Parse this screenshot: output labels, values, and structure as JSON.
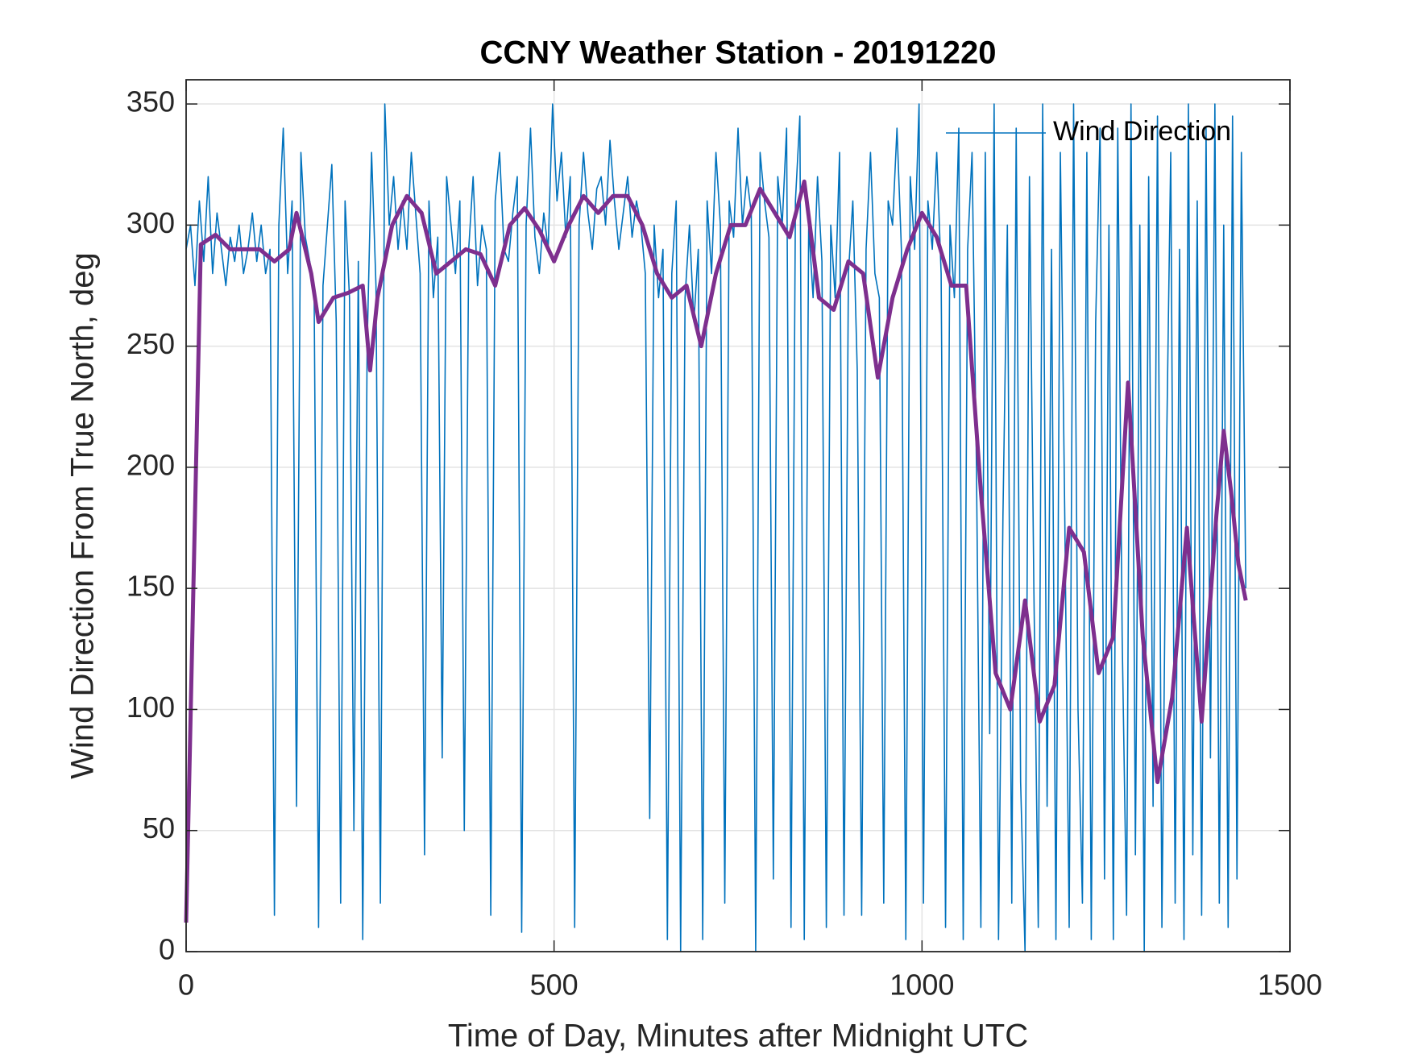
{
  "chart_data": {
    "type": "line",
    "title": "CCNY Weather Station - 20191220",
    "xlabel": "Time of Day, Minutes after Midnight UTC",
    "ylabel": "Wind Direction From True North, deg",
    "xlim": [
      0,
      1500
    ],
    "ylim": [
      0,
      360
    ],
    "xticks": [
      0,
      500,
      1000,
      1500
    ],
    "yticks": [
      0,
      50,
      100,
      150,
      200,
      250,
      300,
      350
    ],
    "grid": true,
    "legend": "northeast",
    "series": [
      {
        "name": "Wind Direction",
        "color": "#0072bd",
        "x": [
          0,
          6,
          12,
          18,
          24,
          30,
          36,
          42,
          48,
          54,
          60,
          66,
          72,
          78,
          84,
          90,
          96,
          102,
          108,
          114,
          120,
          126,
          132,
          138,
          144,
          150,
          156,
          162,
          168,
          174,
          180,
          186,
          192,
          198,
          204,
          210,
          216,
          222,
          228,
          234,
          240,
          246,
          252,
          258,
          264,
          270,
          276,
          282,
          288,
          294,
          300,
          306,
          312,
          318,
          324,
          330,
          336,
          342,
          348,
          354,
          360,
          366,
          372,
          378,
          384,
          390,
          396,
          402,
          408,
          414,
          420,
          426,
          432,
          438,
          444,
          450,
          456,
          462,
          468,
          474,
          480,
          486,
          492,
          498,
          504,
          510,
          516,
          522,
          528,
          534,
          540,
          546,
          552,
          558,
          564,
          570,
          576,
          582,
          588,
          594,
          600,
          606,
          612,
          618,
          624,
          630,
          636,
          642,
          648,
          654,
          660,
          666,
          672,
          678,
          684,
          690,
          696,
          702,
          708,
          714,
          720,
          726,
          732,
          738,
          744,
          750,
          756,
          762,
          768,
          774,
          780,
          786,
          792,
          798,
          804,
          810,
          816,
          822,
          828,
          834,
          840,
          846,
          852,
          858,
          864,
          870,
          876,
          882,
          888,
          894,
          900,
          906,
          912,
          918,
          924,
          930,
          936,
          942,
          948,
          954,
          960,
          966,
          972,
          978,
          984,
          990,
          996,
          1002,
          1008,
          1014,
          1020,
          1026,
          1032,
          1038,
          1044,
          1050,
          1056,
          1062,
          1068,
          1074,
          1080,
          1086,
          1092,
          1098,
          1104,
          1110,
          1116,
          1122,
          1128,
          1134,
          1140,
          1146,
          1152,
          1158,
          1164,
          1170,
          1176,
          1182,
          1188,
          1194,
          1200,
          1206,
          1212,
          1218,
          1224,
          1230,
          1236,
          1242,
          1248,
          1254,
          1260,
          1266,
          1272,
          1278,
          1284,
          1290,
          1296,
          1302,
          1308,
          1314,
          1320,
          1326,
          1332,
          1338,
          1344,
          1350,
          1356,
          1362,
          1368,
          1374,
          1380,
          1386,
          1392,
          1398,
          1404,
          1410,
          1416,
          1422,
          1428,
          1434,
          1440
        ],
        "values": [
          290,
          300,
          275,
          310,
          285,
          320,
          280,
          305,
          290,
          275,
          295,
          285,
          300,
          280,
          290,
          305,
          285,
          300,
          280,
          290,
          15,
          300,
          340,
          280,
          310,
          60,
          330,
          295,
          285,
          270,
          10,
          275,
          300,
          325,
          260,
          20,
          310,
          270,
          50,
          285,
          5,
          250,
          330,
          275,
          20,
          350,
          300,
          320,
          290,
          310,
          290,
          330,
          305,
          280,
          40,
          310,
          270,
          295,
          80,
          320,
          300,
          280,
          310,
          50,
          290,
          320,
          275,
          300,
          290,
          15,
          310,
          330,
          290,
          285,
          305,
          320,
          8,
          300,
          340,
          295,
          280,
          305,
          290,
          350,
          310,
          330,
          295,
          320,
          10,
          300,
          330,
          305,
          290,
          315,
          320,
          300,
          335,
          310,
          290,
          305,
          320,
          295,
          310,
          300,
          280,
          55,
          300,
          270,
          290,
          5,
          280,
          310,
          0,
          270,
          300,
          260,
          290,
          5,
          310,
          280,
          330,
          300,
          20,
          310,
          295,
          340,
          300,
          320,
          305,
          0,
          330,
          310,
          295,
          30,
          320,
          300,
          340,
          10,
          310,
          345,
          5,
          300,
          270,
          320,
          285,
          10,
          300,
          270,
          330,
          15,
          280,
          310,
          240,
          15,
          290,
          330,
          280,
          270,
          20,
          310,
          300,
          340,
          290,
          5,
          320,
          290,
          350,
          20,
          310,
          290,
          330,
          280,
          10,
          300,
          270,
          340,
          5,
          290,
          330,
          200,
          10,
          330,
          90,
          350,
          5,
          180,
          300,
          20,
          340,
          70,
          0,
          320,
          150,
          10,
          350,
          60,
          290,
          5,
          330,
          180,
          10,
          350,
          100,
          20,
          330,
          5,
          260,
          340,
          30,
          300,
          5,
          340,
          130,
          15,
          350,
          40,
          300,
          0,
          320,
          60,
          345,
          10,
          200,
          330,
          20,
          290,
          5,
          350,
          40,
          310,
          15,
          340,
          80,
          350,
          20,
          300,
          10,
          345,
          30,
          330,
          150
        ]
      },
      {
        "color": "#7e2f8e",
        "x": [
          0,
          20,
          40,
          60,
          80,
          100,
          120,
          140,
          150,
          170,
          180,
          200,
          220,
          240,
          250,
          260,
          280,
          300,
          320,
          340,
          360,
          380,
          400,
          420,
          440,
          460,
          480,
          500,
          520,
          540,
          560,
          580,
          600,
          620,
          640,
          660,
          680,
          700,
          720,
          740,
          760,
          780,
          800,
          820,
          840,
          860,
          880,
          900,
          920,
          940,
          960,
          980,
          1000,
          1020,
          1040,
          1060,
          1080,
          1100,
          1120,
          1140,
          1160,
          1180,
          1200,
          1220,
          1240,
          1260,
          1280,
          1300,
          1320,
          1340,
          1360,
          1380,
          1400,
          1410,
          1420,
          1430,
          1440
        ],
        "values": [
          12,
          292,
          296,
          290,
          290,
          290,
          285,
          290,
          305,
          280,
          260,
          270,
          272,
          275,
          240,
          270,
          300,
          312,
          305,
          280,
          285,
          290,
          288,
          275,
          300,
          307,
          298,
          285,
          300,
          312,
          305,
          312,
          312,
          300,
          280,
          270,
          275,
          250,
          280,
          300,
          300,
          315,
          305,
          295,
          318,
          270,
          265,
          285,
          280,
          237,
          270,
          290,
          305,
          295,
          275,
          275,
          190,
          115,
          100,
          145,
          95,
          110,
          175,
          165,
          115,
          130,
          235,
          130,
          70,
          105,
          175,
          95,
          180,
          215,
          190,
          160,
          145
        ]
      }
    ]
  }
}
